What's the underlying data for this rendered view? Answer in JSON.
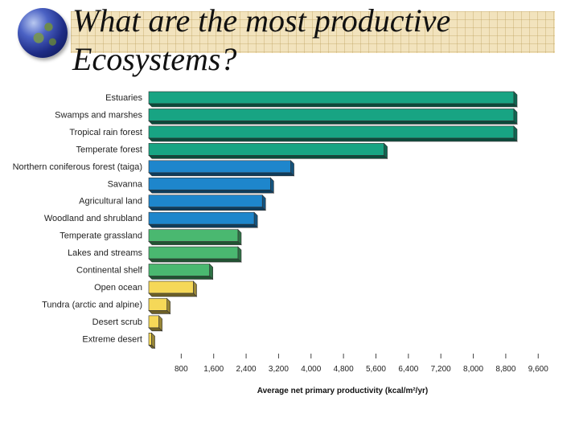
{
  "title": {
    "line1": "What are the most productive",
    "line2": "Ecosystems?"
  },
  "chart_data": {
    "type": "bar",
    "orientation": "horizontal",
    "title": "What are the most productive Ecosystems?",
    "xlabel": "Average net primary productivity (kcal/m²/yr)",
    "ylabel": "",
    "xlim": [
      0,
      9600
    ],
    "xticks": [
      800,
      1600,
      2400,
      3200,
      4000,
      4800,
      5600,
      6400,
      7200,
      8000,
      8800,
      9600
    ],
    "xtick_labels": [
      "800",
      "1,600",
      "2,400",
      "3,200",
      "4,000",
      "4,800",
      "5,600",
      "6,400",
      "7,200",
      "8,000",
      "8,800",
      "9,600"
    ],
    "grid": false,
    "categories": [
      "Estuaries",
      "Swamps and marshes",
      "Tropical rain forest",
      "Temperate forest",
      "Northern coniferous forest (taiga)",
      "Savanna",
      "Agricultural land",
      "Woodland and shrubland",
      "Temperate grassland",
      "Lakes and streams",
      "Continental shelf",
      "Open ocean",
      "Tundra (arctic and alpine)",
      "Desert scrub",
      "Extreme desert"
    ],
    "values": [
      9000,
      9000,
      9000,
      5800,
      3500,
      3000,
      2800,
      2600,
      2200,
      2200,
      1500,
      1100,
      450,
      250,
      70
    ],
    "colors": [
      "#18a483",
      "#18a483",
      "#18a483",
      "#18a483",
      "#1e86cc",
      "#1e86cc",
      "#1e86cc",
      "#1e86cc",
      "#4ab870",
      "#4ab870",
      "#4ab870",
      "#f5d858",
      "#f5d858",
      "#f5d858",
      "#f5d858"
    ]
  }
}
